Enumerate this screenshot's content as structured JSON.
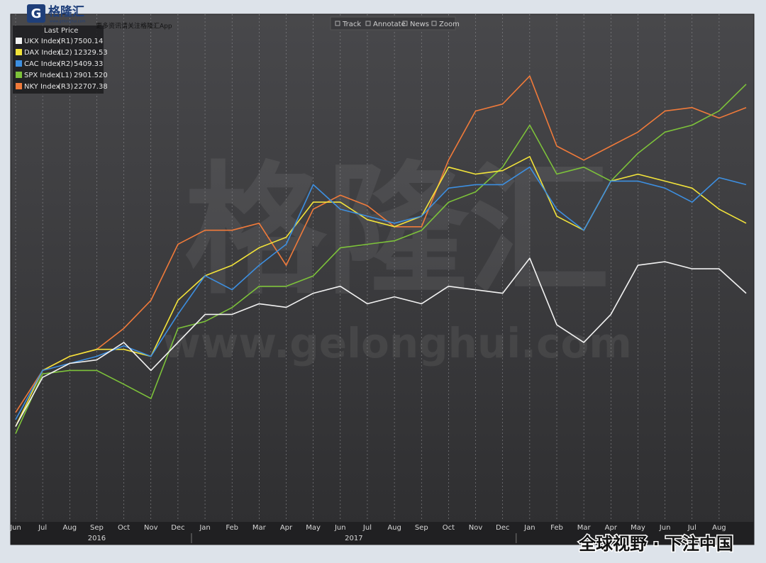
{
  "branding": {
    "logo": "格隆汇",
    "site": "www.gelonghui.com",
    "promo": "更多资讯请关注格隆汇App",
    "slogan": "全球视野 · 下注中国"
  },
  "chart_data": {
    "type": "line",
    "legend_title": "Last Price",
    "toolbar": [
      "Track",
      "Annotate",
      "News",
      "Zoom"
    ],
    "watermark": {
      "logo": "格隆汇",
      "site": "www.gelonghui.com"
    },
    "categories": [
      "Jun",
      "Jul",
      "Aug",
      "Sep",
      "Oct",
      "Nov",
      "Dec",
      "Jan",
      "Feb",
      "Mar",
      "Apr",
      "May",
      "Jun",
      "Jul",
      "Aug",
      "Sep",
      "Oct",
      "Nov",
      "Dec",
      "Jan",
      "Feb",
      "Mar",
      "Apr",
      "May",
      "Jun",
      "Jul",
      "Aug",
      null
    ],
    "years": [
      "2016",
      "2017"
    ],
    "series": [
      {
        "name": "NKY Index",
        "axis_label": "(R3)",
        "last_price": "22707.38",
        "color": "#f07a3a",
        "ylim": [
          12200,
          24900
        ],
        "values": [
          14953,
          16018,
          16374,
          16551,
          17084,
          17794,
          19215,
          19570,
          19570,
          19748,
          18682,
          20103,
          20458,
          20192,
          19659,
          19659,
          21346,
          22590,
          22767,
          23478,
          21702,
          21346,
          21702,
          22057,
          22590,
          22678,
          22412,
          22678
        ]
      },
      {
        "name": "SPX Index",
        "axis_label": "(L1)",
        "last_price": "2901.520",
        "color": "#7dc23a",
        "ylim": [
          1780,
          3080
        ],
        "values": [
          2007,
          2162,
          2171,
          2171,
          2135,
          2098,
          2280,
          2298,
          2334,
          2389,
          2389,
          2416,
          2489,
          2498,
          2507,
          2534,
          2607,
          2634,
          2698,
          2807,
          2680,
          2698,
          2662,
          2734,
          2789,
          2807,
          2844,
          2913
        ]
      },
      {
        "name": "DAX Index",
        "axis_label": "(L2)",
        "last_price": "12329.53",
        "color": "#f2e33a",
        "ylim": [
          7900,
          15400
        ],
        "values": [
          9316,
          10155,
          10365,
          10470,
          10470,
          10365,
          11204,
          11571,
          11729,
          11991,
          12148,
          12673,
          12673,
          12411,
          12306,
          12463,
          13197,
          13092,
          13145,
          13355,
          12463,
          12253,
          12988,
          13092,
          12988,
          12883,
          12568,
          12358
        ]
      },
      {
        "name": "CAC Index",
        "axis_label": "(R2)",
        "last_price": "5409.33",
        "color": "#3d8fe0",
        "ylim": [
          3400,
          6400
        ],
        "values": [
          4008,
          4302,
          4344,
          4386,
          4449,
          4386,
          4638,
          4869,
          4785,
          4931,
          5057,
          5414,
          5267,
          5225,
          5183,
          5225,
          5393,
          5414,
          5414,
          5519,
          5267,
          5141,
          5435,
          5435,
          5393,
          5309,
          5456,
          5414
        ]
      },
      {
        "name": "UKX Index",
        "axis_label": "(R1)",
        "last_price": "7500.14",
        "color": "#f2f2f2",
        "ylim": [
          5500,
          9900
        ],
        "values": [
          6331,
          6762,
          6885,
          6915,
          7069,
          6823,
          7069,
          7315,
          7315,
          7408,
          7377,
          7500,
          7562,
          7408,
          7469,
          7408,
          7562,
          7531,
          7500,
          7808,
          7223,
          7069,
          7315,
          7746,
          7777,
          7715,
          7715,
          7500
        ]
      }
    ],
    "legend_order": [
      4,
      2,
      3,
      1,
      0
    ]
  }
}
